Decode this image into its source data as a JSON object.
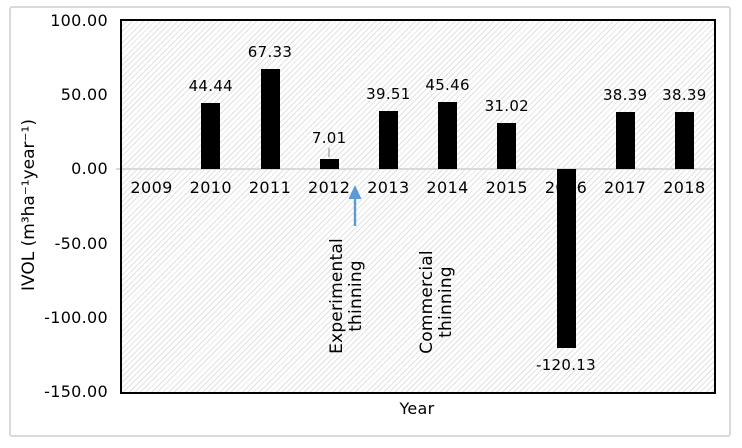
{
  "chart_data": {
    "type": "bar",
    "title": "",
    "xlabel": "Year",
    "ylabel": "IVOL (m³ha⁻¹year⁻¹)",
    "categories": [
      "2009",
      "2010",
      "2011",
      "2012",
      "2013",
      "2014",
      "2015",
      "2016",
      "2017",
      "2018"
    ],
    "values": [
      null,
      44.44,
      67.33,
      7.01,
      39.51,
      45.46,
      31.02,
      -120.13,
      38.39,
      38.39
    ],
    "data_labels": [
      "",
      "44.44",
      "67.33",
      "7.01",
      "39.51",
      "45.46",
      "31.02",
      "-120.13",
      "38.39",
      "38.39"
    ],
    "ytick_labels": [
      "100.00",
      "50.00",
      "0.00",
      "-50.00",
      "-100.00",
      "-150.00"
    ],
    "ytick_values": [
      100,
      50,
      0,
      -50,
      -100,
      -150
    ],
    "ylim": [
      -150,
      100
    ],
    "bar_color": "#000000",
    "zero_line_color": "#d9d9d9",
    "plot_pattern": "light-diagonal-hatch",
    "hatch_color": "#e2e2e2",
    "plot_border_color": "#000000",
    "frame_color": "#d9d9d9",
    "grid": "zero-line-only",
    "legend": "none",
    "annotations": [
      {
        "name": "experimental-thinning-label",
        "text": "Experimental\nthinning"
      },
      {
        "name": "commercial-thinning-label",
        "text": "Commercial\nthinning"
      },
      {
        "name": "event-arrow",
        "icon": "arrow-up-icon",
        "color": "#5b9bd5"
      }
    ]
  }
}
